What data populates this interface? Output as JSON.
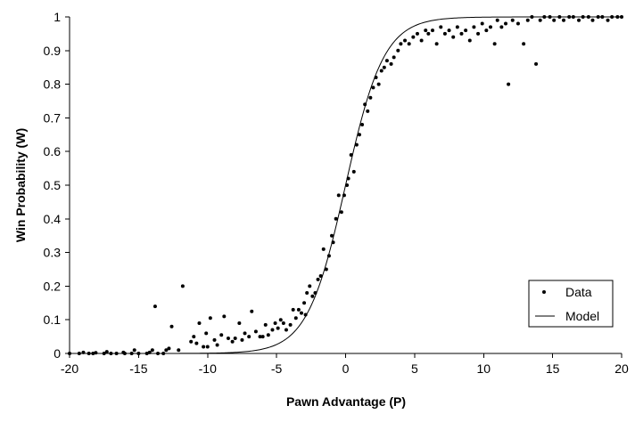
{
  "chart_data": {
    "type": "scatter",
    "title": "",
    "xlabel": "Pawn Advantage (P)",
    "ylabel": "Win Probability (W)",
    "xlim": [
      -20,
      20
    ],
    "ylim": [
      0,
      1
    ],
    "x_ticks": [
      -20,
      -15,
      -10,
      -5,
      0,
      5,
      10,
      15,
      20
    ],
    "y_ticks": [
      0,
      0.1,
      0.2,
      0.3,
      0.4,
      0.5,
      0.6,
      0.7,
      0.8,
      0.9,
      1
    ],
    "x_tick_labels": [
      "-20",
      "-15",
      "-10",
      "-5",
      "0",
      "5",
      "10",
      "15",
      "20"
    ],
    "y_tick_labels": [
      "0",
      "0.1",
      "0.2",
      "0.3",
      "0.4",
      "0.5",
      "0.6",
      "0.7",
      "0.8",
      "0.9",
      "1"
    ],
    "grid": false,
    "legend_position": "bottom-right",
    "legend": {
      "data_label": "Data",
      "model_label": "Model"
    },
    "series": [
      {
        "name": "Data",
        "kind": "scatter",
        "points": [
          [
            -20,
            0
          ],
          [
            -19.3,
            0
          ],
          [
            -19,
            0.003
          ],
          [
            -18.6,
            0
          ],
          [
            -18.3,
            0
          ],
          [
            -18.1,
            0.002
          ],
          [
            -17.5,
            0
          ],
          [
            -17.3,
            0.005
          ],
          [
            -17,
            0
          ],
          [
            -16.6,
            0
          ],
          [
            -16.1,
            0.003
          ],
          [
            -16,
            0
          ],
          [
            -15.5,
            0
          ],
          [
            -15.3,
            0.01
          ],
          [
            -15,
            0
          ],
          [
            -14.4,
            0
          ],
          [
            -14.2,
            0.003
          ],
          [
            -14,
            0.01
          ],
          [
            -13.8,
            0.14
          ],
          [
            -13.6,
            0
          ],
          [
            -13.2,
            0
          ],
          [
            -13,
            0.01
          ],
          [
            -12.8,
            0.015
          ],
          [
            -12.6,
            0.08
          ],
          [
            -12.1,
            0.01
          ],
          [
            -11.8,
            0.2
          ],
          [
            -11.2,
            0.035
          ],
          [
            -11,
            0.05
          ],
          [
            -10.8,
            0.03
          ],
          [
            -10.6,
            0.09
          ],
          [
            -10.3,
            0.02
          ],
          [
            -10.1,
            0.06
          ],
          [
            -10,
            0.02
          ],
          [
            -9.8,
            0.105
          ],
          [
            -9.5,
            0.04
          ],
          [
            -9.3,
            0.025
          ],
          [
            -9,
            0.055
          ],
          [
            -8.8,
            0.11
          ],
          [
            -8.5,
            0.045
          ],
          [
            -8.2,
            0.035
          ],
          [
            -8,
            0.045
          ],
          [
            -7.7,
            0.09
          ],
          [
            -7.5,
            0.04
          ],
          [
            -7.3,
            0.06
          ],
          [
            -7,
            0.05
          ],
          [
            -6.8,
            0.125
          ],
          [
            -6.5,
            0.065
          ],
          [
            -6.2,
            0.05
          ],
          [
            -6,
            0.05
          ],
          [
            -5.8,
            0.085
          ],
          [
            -5.6,
            0.055
          ],
          [
            -5.3,
            0.07
          ],
          [
            -5.1,
            0.09
          ],
          [
            -4.9,
            0.075
          ],
          [
            -4.7,
            0.1
          ],
          [
            -4.5,
            0.09
          ],
          [
            -4.3,
            0.07
          ],
          [
            -4,
            0.085
          ],
          [
            -3.8,
            0.13
          ],
          [
            -3.6,
            0.105
          ],
          [
            -3.4,
            0.13
          ],
          [
            -3.2,
            0.12
          ],
          [
            -3,
            0.15
          ],
          [
            -2.9,
            0.115
          ],
          [
            -2.8,
            0.18
          ],
          [
            -2.6,
            0.2
          ],
          [
            -2.4,
            0.17
          ],
          [
            -2.2,
            0.18
          ],
          [
            -2,
            0.22
          ],
          [
            -1.8,
            0.23
          ],
          [
            -1.6,
            0.31
          ],
          [
            -1.4,
            0.25
          ],
          [
            -1.2,
            0.29
          ],
          [
            -1,
            0.35
          ],
          [
            -0.9,
            0.33
          ],
          [
            -0.7,
            0.4
          ],
          [
            -0.5,
            0.47
          ],
          [
            -0.3,
            0.42
          ],
          [
            -0.1,
            0.47
          ],
          [
            0.1,
            0.5
          ],
          [
            0.2,
            0.52
          ],
          [
            0.4,
            0.59
          ],
          [
            0.6,
            0.54
          ],
          [
            0.8,
            0.62
          ],
          [
            1,
            0.65
          ],
          [
            1.2,
            0.68
          ],
          [
            1.4,
            0.74
          ],
          [
            1.6,
            0.72
          ],
          [
            1.8,
            0.76
          ],
          [
            2,
            0.79
          ],
          [
            2.2,
            0.82
          ],
          [
            2.4,
            0.8
          ],
          [
            2.6,
            0.84
          ],
          [
            2.8,
            0.85
          ],
          [
            3,
            0.87
          ],
          [
            3.3,
            0.86
          ],
          [
            3.5,
            0.88
          ],
          [
            3.8,
            0.9
          ],
          [
            4,
            0.92
          ],
          [
            4.3,
            0.93
          ],
          [
            4.6,
            0.92
          ],
          [
            4.9,
            0.94
          ],
          [
            5.2,
            0.95
          ],
          [
            5.5,
            0.93
          ],
          [
            5.8,
            0.96
          ],
          [
            6,
            0.95
          ],
          [
            6.3,
            0.96
          ],
          [
            6.6,
            0.92
          ],
          [
            6.9,
            0.97
          ],
          [
            7.2,
            0.95
          ],
          [
            7.5,
            0.96
          ],
          [
            7.8,
            0.94
          ],
          [
            8.1,
            0.97
          ],
          [
            8.4,
            0.95
          ],
          [
            8.7,
            0.96
          ],
          [
            9,
            0.93
          ],
          [
            9.3,
            0.97
          ],
          [
            9.6,
            0.95
          ],
          [
            9.9,
            0.98
          ],
          [
            10.2,
            0.96
          ],
          [
            10.5,
            0.97
          ],
          [
            10.8,
            0.92
          ],
          [
            11,
            0.99
          ],
          [
            11.3,
            0.97
          ],
          [
            11.6,
            0.98
          ],
          [
            11.8,
            0.8
          ],
          [
            12.1,
            0.99
          ],
          [
            12.5,
            0.98
          ],
          [
            12.9,
            0.92
          ],
          [
            13.2,
            0.99
          ],
          [
            13.5,
            1
          ],
          [
            13.8,
            0.86
          ],
          [
            14.1,
            0.99
          ],
          [
            14.4,
            1
          ],
          [
            14.8,
            1
          ],
          [
            15.1,
            0.99
          ],
          [
            15.5,
            1
          ],
          [
            15.8,
            0.99
          ],
          [
            16.2,
            1
          ],
          [
            16.5,
            1
          ],
          [
            16.9,
            0.99
          ],
          [
            17.2,
            1
          ],
          [
            17.6,
            1
          ],
          [
            17.9,
            0.99
          ],
          [
            18.3,
            1
          ],
          [
            18.6,
            1
          ],
          [
            19,
            0.99
          ],
          [
            19.3,
            1
          ],
          [
            19.7,
            1
          ],
          [
            20,
            1
          ]
        ]
      },
      {
        "name": "Model",
        "kind": "line",
        "function": "logistic",
        "k": 0.72,
        "x0": 0
      }
    ]
  }
}
